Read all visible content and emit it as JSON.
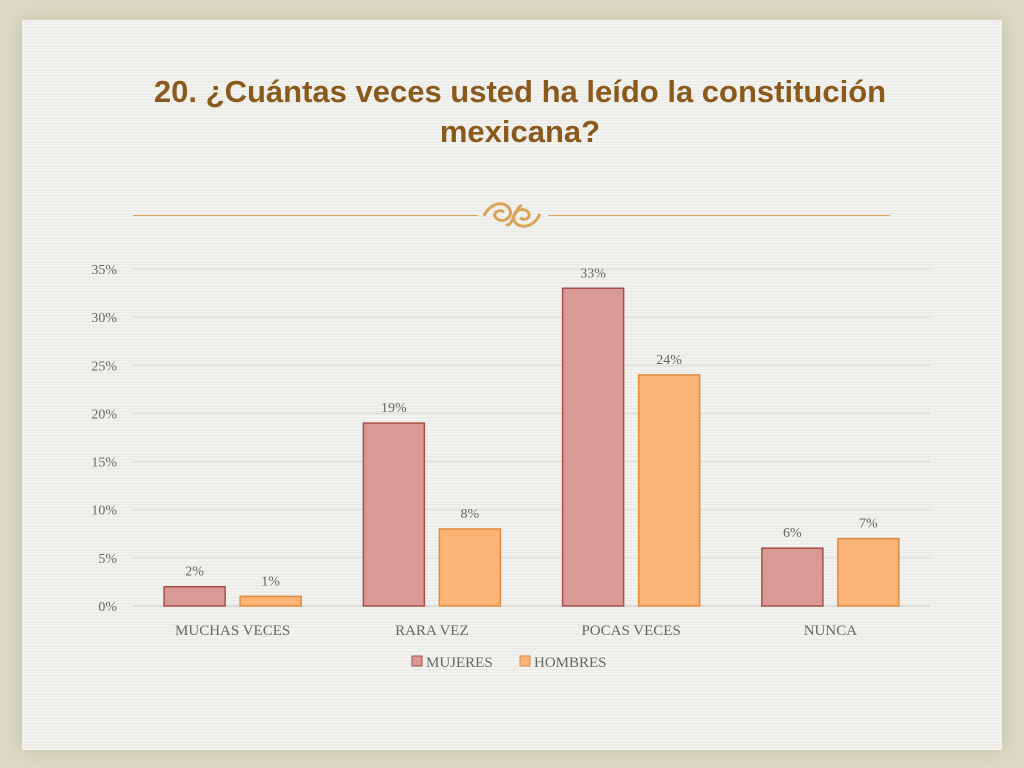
{
  "slide": {
    "title": "20. ¿Cuántas veces usted ha leído la constitución mexicana?"
  },
  "colors": {
    "accent": "#8a5a1c",
    "ornament": "#d9a35a",
    "grid": "#dadad5",
    "text": "#666666"
  },
  "chart_data": {
    "type": "bar",
    "title": "",
    "xlabel": "",
    "ylabel": "",
    "categories": [
      "MUCHAS VECES",
      "RARA VEZ",
      "POCAS VECES",
      "NUNCA"
    ],
    "series": [
      {
        "name": "MUJERES",
        "values": [
          2,
          19,
          33,
          6
        ],
        "labels": [
          "2%",
          "19%",
          "33%",
          "6%"
        ],
        "color": "#d99a96",
        "stroke": "#a64f4a"
      },
      {
        "name": "HOMBRES",
        "values": [
          1,
          8,
          24,
          7
        ],
        "labels": [
          "1%",
          "8%",
          "24%",
          "7%"
        ],
        "color": "#fbb376",
        "stroke": "#e08b3e"
      }
    ],
    "ylim": [
      0,
      35
    ],
    "yticks": [
      0,
      5,
      10,
      15,
      20,
      25,
      30,
      35
    ],
    "ytick_labels": [
      "0%",
      "5%",
      "10%",
      "15%",
      "20%",
      "25%",
      "30%",
      "35%"
    ],
    "grid": true,
    "legend_position": "bottom"
  }
}
